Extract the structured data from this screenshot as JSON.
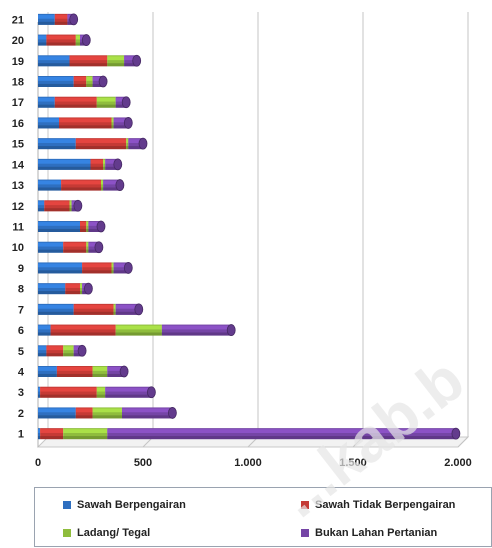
{
  "chart_data": {
    "type": "bar",
    "orientation": "horizontal",
    "stacked": true,
    "categories": [
      "1",
      "2",
      "3",
      "4",
      "5",
      "6",
      "7",
      "8",
      "9",
      "10",
      "11",
      "12",
      "13",
      "14",
      "15",
      "16",
      "17",
      "18",
      "19",
      "20",
      "21"
    ],
    "series": [
      {
        "name": "Sawah Berpengairan",
        "color": "#2e6fc0",
        "values": [
          10,
          180,
          10,
          90,
          40,
          60,
          170,
          130,
          210,
          120,
          200,
          30,
          110,
          250,
          180,
          100,
          80,
          170,
          150,
          40,
          80
        ]
      },
      {
        "name": "Sawah Tidak Berpengairan",
        "color": "#c53a35",
        "values": [
          110,
          80,
          270,
          170,
          80,
          310,
          190,
          70,
          140,
          110,
          30,
          120,
          190,
          60,
          240,
          250,
          200,
          60,
          180,
          140,
          60
        ]
      },
      {
        "name": "Ladang/ Tegal",
        "color": "#8fbd3d",
        "values": [
          210,
          140,
          40,
          70,
          50,
          220,
          10,
          10,
          10,
          10,
          10,
          10,
          10,
          10,
          10,
          10,
          90,
          30,
          80,
          20,
          0
        ]
      },
      {
        "name": "Bukan Lahan Pertanian",
        "color": "#7545a6",
        "values": [
          1660,
          240,
          220,
          80,
          40,
          330,
          110,
          30,
          70,
          50,
          60,
          30,
          80,
          60,
          70,
          70,
          50,
          50,
          60,
          30,
          30
        ]
      }
    ],
    "xlim": [
      0,
      2000
    ],
    "x_ticks": [
      "0",
      "500",
      "1.000",
      "1.500",
      "2.000"
    ],
    "x_tick_values": [
      0,
      500,
      1000,
      1500,
      2000
    ],
    "xlabel": "",
    "ylabel": "",
    "title": "",
    "grid": true,
    "legend_position": "bottom"
  },
  "legend": {
    "items": [
      {
        "label": "Sawah Berpengairan",
        "color": "#2e6fc0"
      },
      {
        "label": "Sawah Tidak Berpengairan",
        "color": "#c53a35"
      },
      {
        "label": "Ladang/ Tegal",
        "color": "#8fbd3d"
      },
      {
        "label": "Bukan Lahan Pertanian",
        "color": "#7545a6"
      }
    ]
  },
  "watermark": {
    "text": "...kab.b",
    "color": "#e8e8e8"
  }
}
